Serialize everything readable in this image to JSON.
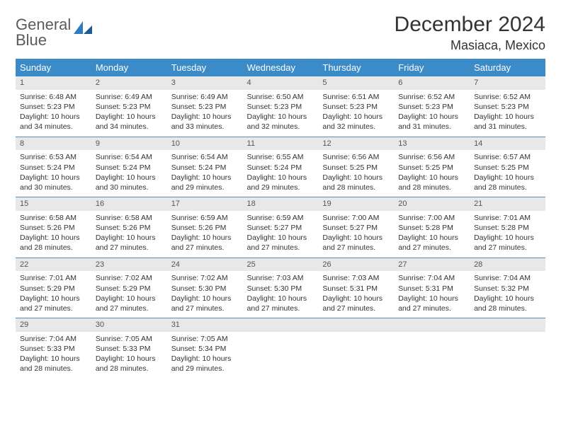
{
  "logo": {
    "line1": "General",
    "line2": "Blue"
  },
  "title": "December 2024",
  "location": "Masiaca, Mexico",
  "colors": {
    "header_bg": "#3b8bc8",
    "daynum_bg": "#e8e8e8",
    "row_border": "#5b8fb8",
    "text": "#333333",
    "logo_gray": "#5a5a5a",
    "logo_blue": "#2f7bbf"
  },
  "day_headers": [
    "Sunday",
    "Monday",
    "Tuesday",
    "Wednesday",
    "Thursday",
    "Friday",
    "Saturday"
  ],
  "weeks": [
    [
      {
        "n": "1",
        "sr": "6:48 AM",
        "ss": "5:23 PM",
        "dh": "10",
        "dm": "34"
      },
      {
        "n": "2",
        "sr": "6:49 AM",
        "ss": "5:23 PM",
        "dh": "10",
        "dm": "34"
      },
      {
        "n": "3",
        "sr": "6:49 AM",
        "ss": "5:23 PM",
        "dh": "10",
        "dm": "33"
      },
      {
        "n": "4",
        "sr": "6:50 AM",
        "ss": "5:23 PM",
        "dh": "10",
        "dm": "32"
      },
      {
        "n": "5",
        "sr": "6:51 AM",
        "ss": "5:23 PM",
        "dh": "10",
        "dm": "32"
      },
      {
        "n": "6",
        "sr": "6:52 AM",
        "ss": "5:23 PM",
        "dh": "10",
        "dm": "31"
      },
      {
        "n": "7",
        "sr": "6:52 AM",
        "ss": "5:23 PM",
        "dh": "10",
        "dm": "31"
      }
    ],
    [
      {
        "n": "8",
        "sr": "6:53 AM",
        "ss": "5:24 PM",
        "dh": "10",
        "dm": "30"
      },
      {
        "n": "9",
        "sr": "6:54 AM",
        "ss": "5:24 PM",
        "dh": "10",
        "dm": "30"
      },
      {
        "n": "10",
        "sr": "6:54 AM",
        "ss": "5:24 PM",
        "dh": "10",
        "dm": "29"
      },
      {
        "n": "11",
        "sr": "6:55 AM",
        "ss": "5:24 PM",
        "dh": "10",
        "dm": "29"
      },
      {
        "n": "12",
        "sr": "6:56 AM",
        "ss": "5:25 PM",
        "dh": "10",
        "dm": "28"
      },
      {
        "n": "13",
        "sr": "6:56 AM",
        "ss": "5:25 PM",
        "dh": "10",
        "dm": "28"
      },
      {
        "n": "14",
        "sr": "6:57 AM",
        "ss": "5:25 PM",
        "dh": "10",
        "dm": "28"
      }
    ],
    [
      {
        "n": "15",
        "sr": "6:58 AM",
        "ss": "5:26 PM",
        "dh": "10",
        "dm": "28"
      },
      {
        "n": "16",
        "sr": "6:58 AM",
        "ss": "5:26 PM",
        "dh": "10",
        "dm": "27"
      },
      {
        "n": "17",
        "sr": "6:59 AM",
        "ss": "5:26 PM",
        "dh": "10",
        "dm": "27"
      },
      {
        "n": "18",
        "sr": "6:59 AM",
        "ss": "5:27 PM",
        "dh": "10",
        "dm": "27"
      },
      {
        "n": "19",
        "sr": "7:00 AM",
        "ss": "5:27 PM",
        "dh": "10",
        "dm": "27"
      },
      {
        "n": "20",
        "sr": "7:00 AM",
        "ss": "5:28 PM",
        "dh": "10",
        "dm": "27"
      },
      {
        "n": "21",
        "sr": "7:01 AM",
        "ss": "5:28 PM",
        "dh": "10",
        "dm": "27"
      }
    ],
    [
      {
        "n": "22",
        "sr": "7:01 AM",
        "ss": "5:29 PM",
        "dh": "10",
        "dm": "27"
      },
      {
        "n": "23",
        "sr": "7:02 AM",
        "ss": "5:29 PM",
        "dh": "10",
        "dm": "27"
      },
      {
        "n": "24",
        "sr": "7:02 AM",
        "ss": "5:30 PM",
        "dh": "10",
        "dm": "27"
      },
      {
        "n": "25",
        "sr": "7:03 AM",
        "ss": "5:30 PM",
        "dh": "10",
        "dm": "27"
      },
      {
        "n": "26",
        "sr": "7:03 AM",
        "ss": "5:31 PM",
        "dh": "10",
        "dm": "27"
      },
      {
        "n": "27",
        "sr": "7:04 AM",
        "ss": "5:31 PM",
        "dh": "10",
        "dm": "27"
      },
      {
        "n": "28",
        "sr": "7:04 AM",
        "ss": "5:32 PM",
        "dh": "10",
        "dm": "28"
      }
    ],
    [
      {
        "n": "29",
        "sr": "7:04 AM",
        "ss": "5:33 PM",
        "dh": "10",
        "dm": "28"
      },
      {
        "n": "30",
        "sr": "7:05 AM",
        "ss": "5:33 PM",
        "dh": "10",
        "dm": "28"
      },
      {
        "n": "31",
        "sr": "7:05 AM",
        "ss": "5:34 PM",
        "dh": "10",
        "dm": "29"
      },
      null,
      null,
      null,
      null
    ]
  ],
  "labels": {
    "sunrise": "Sunrise:",
    "sunset": "Sunset:",
    "daylight_prefix": "Daylight:",
    "hours_word": "hours",
    "and_word": "and",
    "minutes_word": "minutes."
  }
}
